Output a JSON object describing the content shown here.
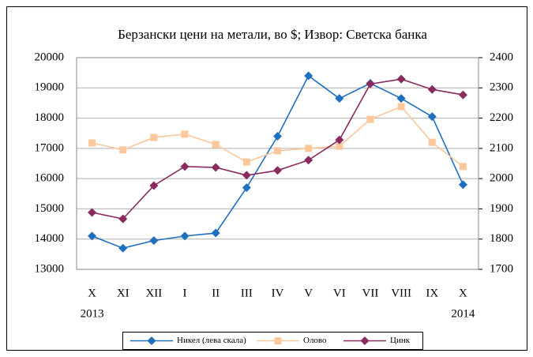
{
  "chart_data": {
    "type": "line",
    "title": "Берзански цени на метали, во $; Извор: Светска банка",
    "categories": [
      "X",
      "XI",
      "XII",
      "I",
      "II",
      "III",
      "IV",
      "V",
      "VI",
      "VII",
      "VIII",
      "IX",
      "X"
    ],
    "category_years": [
      "2013",
      null,
      null,
      null,
      null,
      null,
      null,
      null,
      null,
      null,
      null,
      null,
      "2014"
    ],
    "ylim": [
      13000,
      20000
    ],
    "yticks": [
      13000,
      14000,
      15000,
      16000,
      17000,
      18000,
      19000,
      20000
    ],
    "y2lim": [
      1700,
      2400
    ],
    "y2ticks": [
      1700,
      1800,
      1900,
      2000,
      2100,
      2200,
      2300,
      2400
    ],
    "grid": true,
    "legend": "bottom",
    "series": [
      {
        "name": "Никел (лева скала)",
        "color": "#1f6fc1",
        "marker": "diamond",
        "values": [
          14100,
          13700,
          13950,
          14100,
          14200,
          15700,
          17400,
          19400,
          18650,
          19150,
          18650,
          18050,
          15800
        ]
      },
      {
        "name": "Олово",
        "color": "#fcc89b",
        "marker": "square",
        "axis": "y2",
        "values": [
          2118,
          2095,
          2136,
          2147,
          2113,
          2055,
          2092,
          2100,
          2107,
          2196,
          2238,
          2120,
          2040
        ]
      },
      {
        "name": "Цинк",
        "color": "#8b2a5e",
        "marker": "diamond",
        "axis": "y2",
        "values": [
          1888,
          1867,
          1977,
          2040,
          2037,
          2011,
          2027,
          2061,
          2128,
          2313,
          2329,
          2295,
          2277
        ]
      }
    ]
  }
}
